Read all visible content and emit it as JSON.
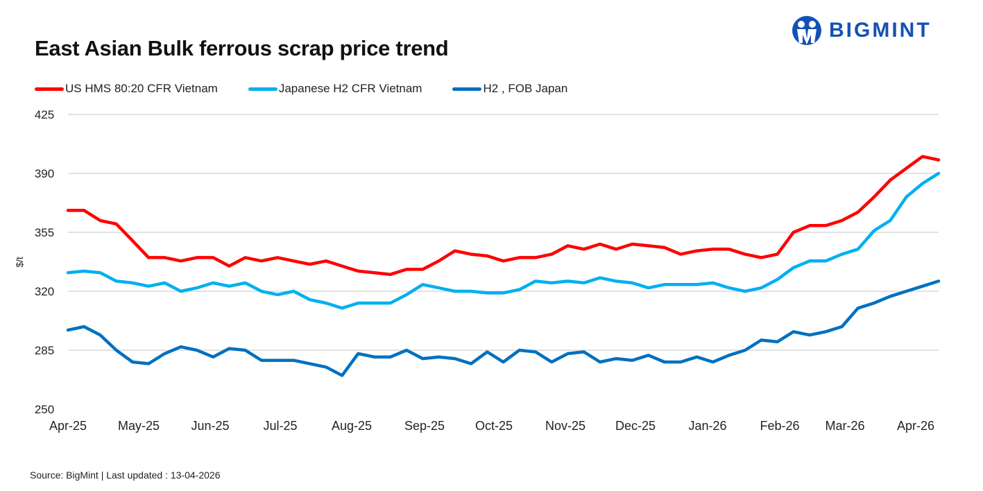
{
  "title": "East Asian Bulk ferrous scrap price trend",
  "logo_text": "BIGMINT",
  "source": "Source: BigMint  | Last updated : 13-04-2026",
  "chart_data": {
    "type": "line",
    "title": "East Asian Bulk ferrous scrap price trend",
    "xlabel": "",
    "ylabel": "$/t",
    "ylim": [
      250,
      425
    ],
    "yticks": [
      250,
      285,
      320,
      355,
      390,
      425
    ],
    "xticks": [
      "Apr-25",
      "May-25",
      "Jun-25",
      "Jul-25",
      "Aug-25",
      "Sep-25",
      "Oct-25",
      "Nov-25",
      "Dec-25",
      "Jan-26",
      "Feb-26",
      "Mar-26",
      "Apr-26"
    ],
    "grid": true,
    "legend": "top-left",
    "series": [
      {
        "name": "US HMS 80:20 CFR Vietnam",
        "color": "#ff0000",
        "values": [
          368,
          368,
          362,
          360,
          350,
          340,
          340,
          338,
          340,
          340,
          335,
          340,
          338,
          340,
          338,
          336,
          338,
          335,
          332,
          331,
          330,
          333,
          333,
          338,
          344,
          342,
          341,
          338,
          340,
          340,
          342,
          347,
          345,
          348,
          345,
          348,
          347,
          346,
          342,
          344,
          345,
          345,
          342,
          340,
          342,
          355,
          359,
          359,
          362,
          367,
          376,
          386,
          393,
          400,
          398
        ]
      },
      {
        "name": "Japanese H2 CFR Vietnam",
        "color": "#00b0f0",
        "values": [
          331,
          332,
          331,
          326,
          325,
          323,
          325,
          320,
          322,
          325,
          323,
          325,
          320,
          318,
          320,
          315,
          313,
          310,
          313,
          313,
          313,
          318,
          324,
          322,
          320,
          320,
          319,
          319,
          321,
          326,
          325,
          326,
          325,
          328,
          326,
          325,
          322,
          324,
          324,
          324,
          325,
          322,
          320,
          322,
          327,
          334,
          338,
          338,
          342,
          345,
          356,
          362,
          376,
          384,
          390
        ]
      },
      {
        "name": "H2 , FOB Japan",
        "color": "#0070c0",
        "values": [
          297,
          299,
          294,
          285,
          278,
          277,
          283,
          287,
          285,
          281,
          286,
          285,
          279,
          279,
          279,
          277,
          275,
          270,
          283,
          281,
          281,
          285,
          280,
          281,
          280,
          277,
          284,
          278,
          285,
          284,
          278,
          283,
          284,
          278,
          280,
          279,
          282,
          278,
          278,
          281,
          278,
          282,
          285,
          291,
          290,
          296,
          294,
          296,
          299,
          310,
          313,
          317,
          320,
          323,
          326
        ]
      }
    ]
  }
}
